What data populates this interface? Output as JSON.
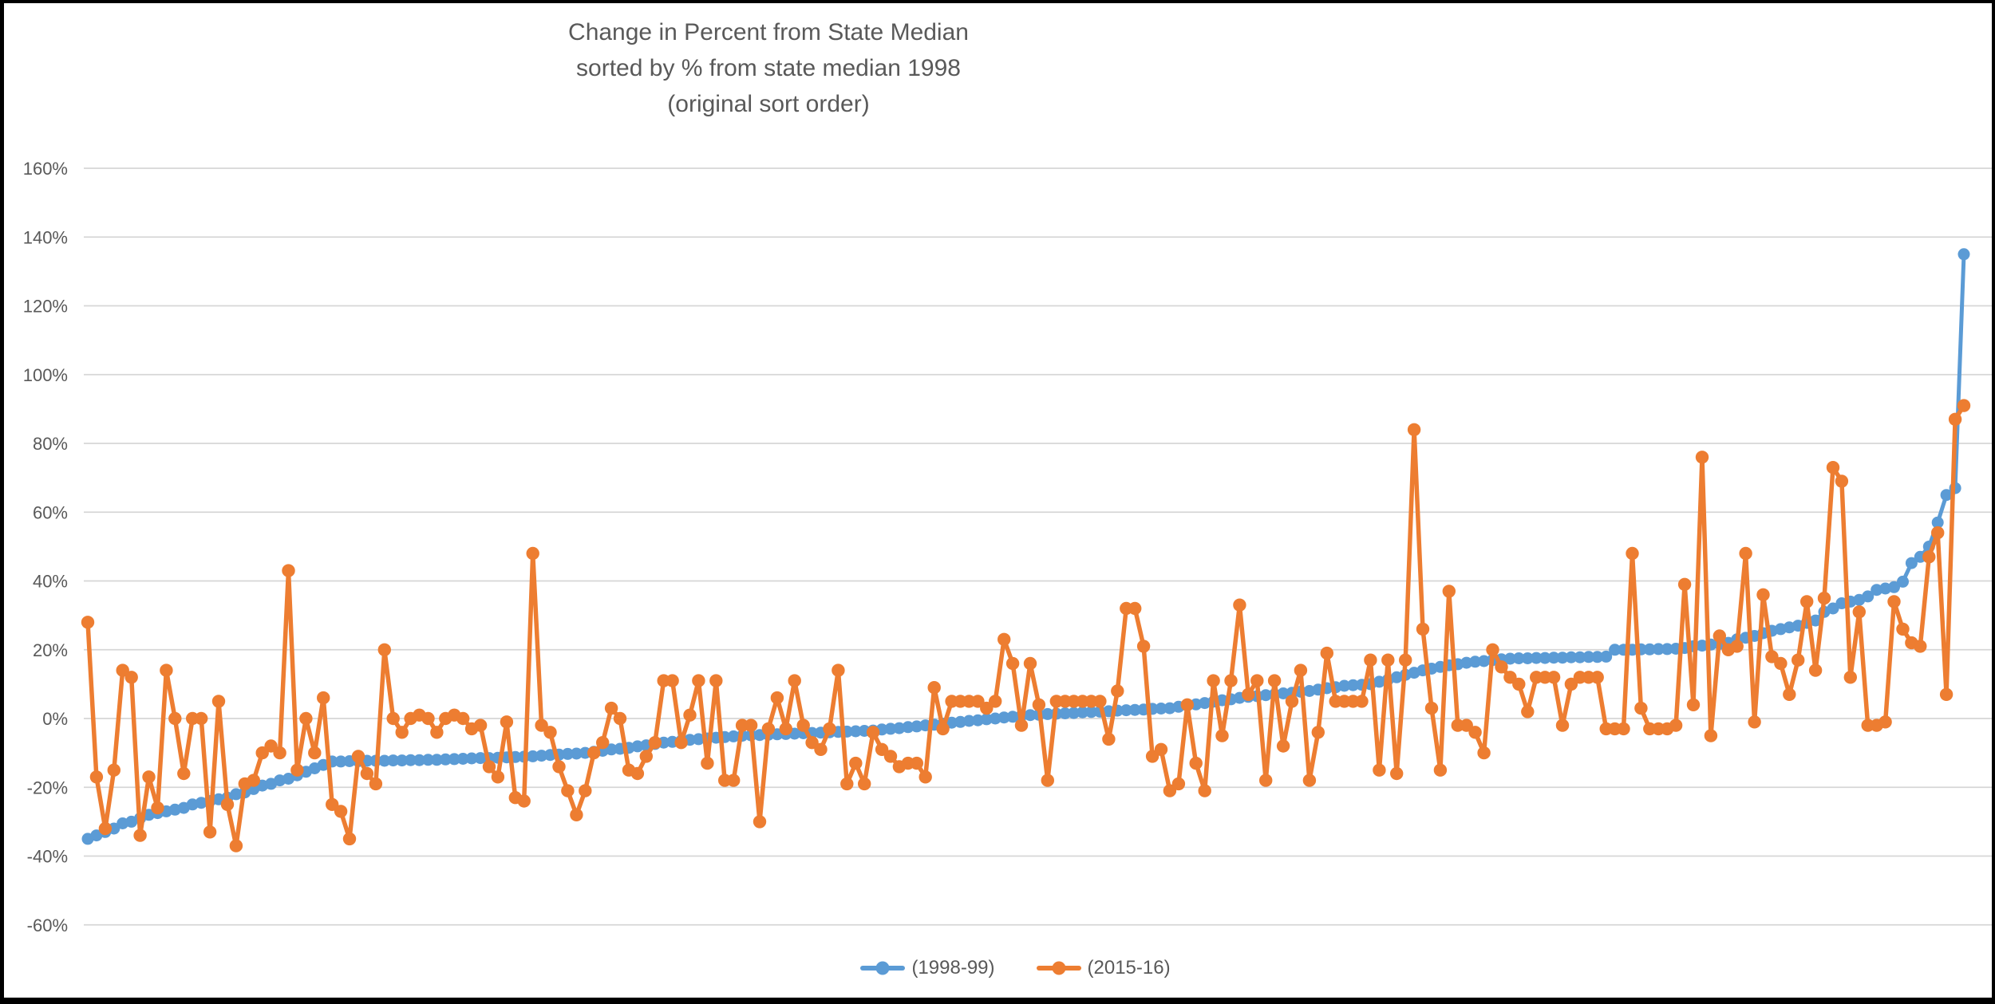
{
  "title": {
    "line1": "Change in Percent from State Median",
    "line2": "sorted by % from state median 1998",
    "line3": "(original sort order)"
  },
  "legend": {
    "items": [
      {
        "label": "(1998-99)",
        "color": "#5B9BD5"
      },
      {
        "label": "(2015-16)",
        "color": "#ED7D31"
      }
    ]
  },
  "colors": {
    "background": "#FFFFFF",
    "frame_border": "#000000",
    "gridline": "#D6D6D6",
    "axis_text": "#595959",
    "title_text": "#595959",
    "series_blue": "#5B9BD5",
    "series_orange": "#ED7D31"
  },
  "chart_data": {
    "type": "line",
    "title": "Change in Percent from State Median sorted by % from state median 1998 (original sort order)",
    "xlabel": "",
    "ylabel": "",
    "x_axis": "categories (individual records in original sort order, no tick labels shown)",
    "n_points": 216,
    "ylim": [
      -60,
      160
    ],
    "y_tick_step": 20,
    "y_ticks": [
      "160%",
      "140%",
      "120%",
      "100%",
      "80%",
      "60%",
      "40%",
      "20%",
      "0%",
      "-20%",
      "-40%",
      "-60%"
    ],
    "y_tick_values": [
      160,
      140,
      120,
      100,
      80,
      60,
      40,
      20,
      0,
      -20,
      -40,
      -60
    ],
    "grid": "horizontal-only",
    "legend_position": "bottom-center",
    "marker": "circle",
    "series": [
      {
        "name": "(1998-99)",
        "color": "#5B9BD5",
        "values": [
          -35,
          -34,
          -33,
          -32,
          -30.5,
          -30,
          -29,
          -28,
          -27.5,
          -27,
          -26.5,
          -26,
          -25,
          -24.5,
          -24,
          -23.5,
          -23,
          -22,
          -21.5,
          -20.5,
          -19.5,
          -19,
          -18,
          -17.5,
          -16.5,
          -15.5,
          -14.5,
          -13.5,
          -12.5,
          -12.5,
          -12.4,
          -12.4,
          -12.3,
          -12.3,
          -12.3,
          -12.2,
          -12.2,
          -12.1,
          -12.1,
          -12,
          -12,
          -11.9,
          -11.8,
          -11.7,
          -11.6,
          -11.5,
          -11.5,
          -11.4,
          -11.3,
          -11.2,
          -11.1,
          -11,
          -10.8,
          -10.6,
          -10.5,
          -10.3,
          -10.2,
          -10,
          -9.7,
          -9.4,
          -9,
          -8.8,
          -8.5,
          -8.1,
          -7.8,
          -7.4,
          -7,
          -6.8,
          -6.5,
          -6.2,
          -6,
          -5.8,
          -5.6,
          -5.4,
          -5.2,
          -5,
          -4.9,
          -4.8,
          -4.7,
          -4.6,
          -4.5,
          -4.4,
          -4.3,
          -4.2,
          -4.1,
          -4,
          -3.9,
          -3.8,
          -3.7,
          -3.6,
          -3.5,
          -3.2,
          -3,
          -2.8,
          -2.5,
          -2.3,
          -2,
          -1.8,
          -1.5,
          -1.2,
          -1,
          -0.7,
          -0.5,
          -0.2,
          0,
          0.3,
          0.5,
          0.8,
          1,
          1.1,
          1.3,
          1.4,
          1.5,
          1.6,
          1.8,
          1.9,
          2,
          2.1,
          2.3,
          2.4,
          2.5,
          2.6,
          2.8,
          2.9,
          3,
          3.4,
          3.8,
          4.1,
          4.5,
          4.9,
          5.3,
          5.6,
          6,
          6.3,
          6.5,
          6.8,
          7,
          7.3,
          7.5,
          7.8,
          8,
          8.4,
          8.8,
          9.1,
          9.5,
          9.7,
          9.8,
          10,
          10.7,
          11.3,
          12,
          12.7,
          13.3,
          14,
          14.5,
          15,
          15.5,
          15.8,
          16.2,
          16.5,
          16.7,
          17,
          17.2,
          17.4,
          17.5,
          17.5,
          17.6,
          17.6,
          17.7,
          17.7,
          17.8,
          17.8,
          17.9,
          17.9,
          18,
          20,
          20,
          20,
          20.1,
          20.1,
          20.2,
          20.2,
          20.3,
          20.5,
          21,
          21.2,
          21.5,
          21.7,
          22,
          23,
          23.5,
          24,
          24.8,
          25.5,
          26,
          26.5,
          27,
          27.8,
          28.5,
          31,
          32,
          33.5,
          34,
          34.5,
          35.5,
          37.4,
          37.8,
          38.2,
          39.8,
          45.2,
          47,
          50,
          57,
          65,
          67,
          135
        ]
      },
      {
        "name": "(2015-16)",
        "color": "#ED7D31",
        "values": [
          28,
          -17,
          -32,
          -15,
          14,
          12,
          -34,
          -17,
          -26,
          14,
          0,
          -16,
          0,
          0,
          -33,
          5,
          -25,
          -37,
          -19,
          -18,
          -10,
          -8,
          -10,
          43,
          -15,
          0,
          -10,
          6,
          -25,
          -27,
          -35,
          -11,
          -16,
          -19,
          20,
          0,
          -4,
          0,
          1,
          0,
          -4,
          0,
          1,
          0,
          -3,
          -2,
          -14,
          -17,
          -1,
          -23,
          -24,
          48,
          -2,
          -4,
          -14,
          -21,
          -28,
          -21,
          -10,
          -7,
          3,
          0,
          -15,
          -16,
          -11,
          -7,
          11,
          11,
          -7,
          1,
          11,
          -13,
          11,
          -18,
          -18,
          -2,
          -2,
          -30,
          -3,
          6,
          -3,
          11,
          -2,
          -7,
          -9,
          -3,
          14,
          -19,
          -13,
          -19,
          -4,
          -9,
          -11,
          -14,
          -13,
          -13,
          -17,
          9,
          -3,
          5,
          5,
          5,
          5,
          3,
          5,
          23,
          16,
          -2,
          16,
          4,
          -18,
          5,
          5,
          5,
          5,
          5,
          5,
          -6,
          8,
          32,
          32,
          21,
          -11,
          -9,
          -21,
          -19,
          4,
          -13,
          -21,
          11,
          -5,
          11,
          33,
          7,
          11,
          -18,
          11,
          -8,
          5,
          14,
          -18,
          -4,
          19,
          5,
          5,
          5,
          5,
          17,
          -15,
          17,
          -16,
          17,
          84,
          26,
          3,
          -15,
          37,
          -2,
          -2,
          -4,
          -10,
          20,
          15,
          12,
          10,
          2,
          12,
          12,
          12,
          -2,
          10,
          12,
          12,
          12,
          -3,
          -3,
          -3,
          48,
          3,
          -3,
          -3,
          -3,
          -2,
          39,
          4,
          76,
          -5,
          24,
          20,
          21,
          48,
          -1,
          36,
          18,
          16,
          7,
          17,
          34,
          14,
          35,
          73,
          69,
          12,
          31,
          -2,
          -2,
          -1,
          34,
          26,
          22,
          21,
          47,
          54,
          7,
          87,
          91
        ]
      }
    ]
  },
  "layout_note_values_visible_only": true
}
